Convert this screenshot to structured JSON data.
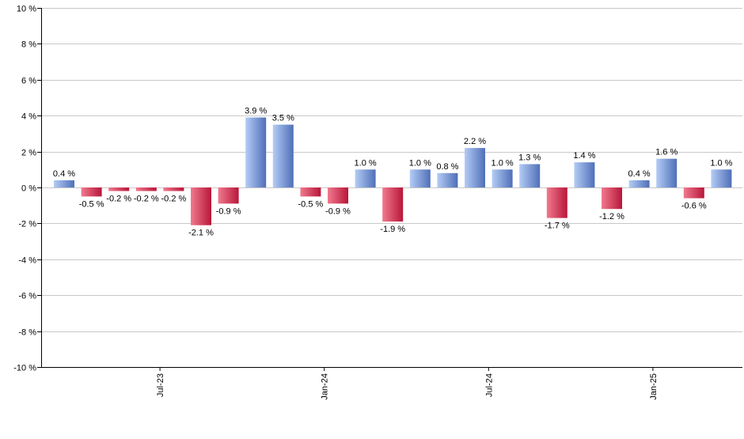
{
  "chart_data": {
    "type": "bar",
    "title": "",
    "xlabel": "",
    "ylabel": "",
    "ylim": [
      -10,
      10
    ],
    "y_ticks": [
      "10 %",
      "8 %",
      "6 %",
      "4 %",
      "2 %",
      "0 %",
      "-2 %",
      "-4 %",
      "-6 %",
      "-8 %",
      "-10 %"
    ],
    "y_tick_values": [
      10,
      8,
      6,
      4,
      2,
      0,
      -2,
      -4,
      -6,
      -8,
      -10
    ],
    "x_ticks": [
      {
        "label": "Jul-23",
        "after_index": 3
      },
      {
        "label": "Jan-24",
        "after_index": 9
      },
      {
        "label": "Jul-24",
        "after_index": 15
      },
      {
        "label": "Jan-25",
        "after_index": 21
      }
    ],
    "values": [
      0.4,
      -0.5,
      -0.2,
      -0.2,
      -0.2,
      -2.1,
      -0.9,
      3.9,
      3.5,
      -0.5,
      -0.9,
      1.0,
      -1.9,
      1.0,
      0.8,
      2.2,
      1.0,
      1.3,
      -1.7,
      1.4,
      -1.2,
      0.4,
      1.6,
      -0.6,
      1.0
    ],
    "data_labels": [
      "0.4 %",
      "-0.5 %",
      "-0.2 %",
      "-0.2 %",
      "-0.2 %",
      "-2.1 %",
      "-0.9 %",
      "3.9 %",
      "3.5 %",
      "-0.5 %",
      "-0.9 %",
      "1.0 %",
      "-1.9 %",
      "1.0 %",
      "0.8 %",
      "2.2 %",
      "1.0 %",
      "1.3 %",
      "-1.7 %",
      "1.4 %",
      "-1.2 %",
      "0.4 %",
      "1.6 %",
      "-0.6 %",
      "1.0 %"
    ],
    "grid": true,
    "legend": "none",
    "colors": {
      "positive_light": "#b4ccf5",
      "positive_dark": "#4f6fb8",
      "negative_light": "#f07a8e",
      "negative_dark": "#b8163a",
      "grid": "#c8c8c8",
      "axis": "#000000"
    }
  }
}
